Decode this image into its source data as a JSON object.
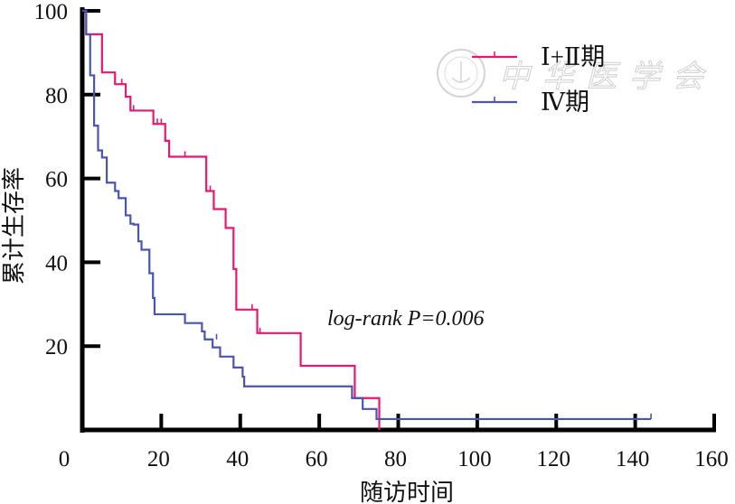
{
  "chart_data": {
    "type": "line",
    "subtype": "kaplan-meier-step",
    "title": "",
    "xlabel": "随访时间",
    "ylabel": "累计生存率",
    "xlim": [
      0,
      160
    ],
    "ylim": [
      0,
      100
    ],
    "x_ticks": [
      0,
      20,
      40,
      60,
      80,
      100,
      120,
      140,
      160
    ],
    "y_ticks": [
      20,
      40,
      60,
      80,
      100
    ],
    "grid": false,
    "legend_placement": "top-right",
    "annotation": "log-rank P=0.006",
    "watermark": "中华医学会",
    "series": [
      {
        "name": "Ⅰ+Ⅱ期",
        "color": "#e8176f",
        "steps": [
          [
            0,
            100
          ],
          [
            1,
            94.4
          ],
          [
            5,
            85.3
          ],
          [
            8.3,
            82.5
          ],
          [
            11,
            79.5
          ],
          [
            12.2,
            76.2
          ],
          [
            18,
            73
          ],
          [
            21,
            69
          ],
          [
            22,
            65.2
          ],
          [
            31.4,
            57
          ],
          [
            33.3,
            52.7
          ],
          [
            36.3,
            48.2
          ],
          [
            38.3,
            38.4
          ],
          [
            39,
            28.7
          ],
          [
            44.3,
            23.1
          ],
          [
            55.3,
            15.3
          ],
          [
            69,
            7.6
          ],
          [
            75.2,
            0
          ]
        ],
        "end": 75.2,
        "censored": [
          [
            10,
            82.5
          ],
          [
            13,
            76.2
          ],
          [
            19,
            73
          ],
          [
            20,
            73
          ],
          [
            26,
            65.2
          ],
          [
            32.4,
            57
          ],
          [
            43,
            28.7
          ],
          [
            45,
            23.1
          ]
        ]
      },
      {
        "name": "Ⅳ期",
        "color": "#4a55b0",
        "steps": [
          [
            0,
            100
          ],
          [
            1,
            94.4
          ],
          [
            2,
            84.6
          ],
          [
            3,
            72.6
          ],
          [
            4,
            66.7
          ],
          [
            5,
            65
          ],
          [
            6.2,
            59
          ],
          [
            8.3,
            57
          ],
          [
            9.2,
            55.3
          ],
          [
            11,
            51.2
          ],
          [
            12.2,
            49.2
          ],
          [
            13,
            49
          ],
          [
            14.2,
            45
          ],
          [
            15,
            43
          ],
          [
            17,
            37.4
          ],
          [
            17.9,
            31.5
          ],
          [
            18.3,
            27.6
          ],
          [
            26,
            25.5
          ],
          [
            30.3,
            23.5
          ],
          [
            31,
            21.6
          ],
          [
            33,
            19.7
          ],
          [
            34.9,
            17.5
          ],
          [
            38.3,
            14.9
          ],
          [
            40.6,
            12.7
          ],
          [
            41,
            10.4
          ],
          [
            68.3,
            7.6
          ],
          [
            71,
            5
          ],
          [
            74.5,
            2.6
          ]
        ],
        "end": 144,
        "censored": [
          [
            34,
            21.6
          ],
          [
            144,
            2.6
          ]
        ]
      }
    ]
  }
}
